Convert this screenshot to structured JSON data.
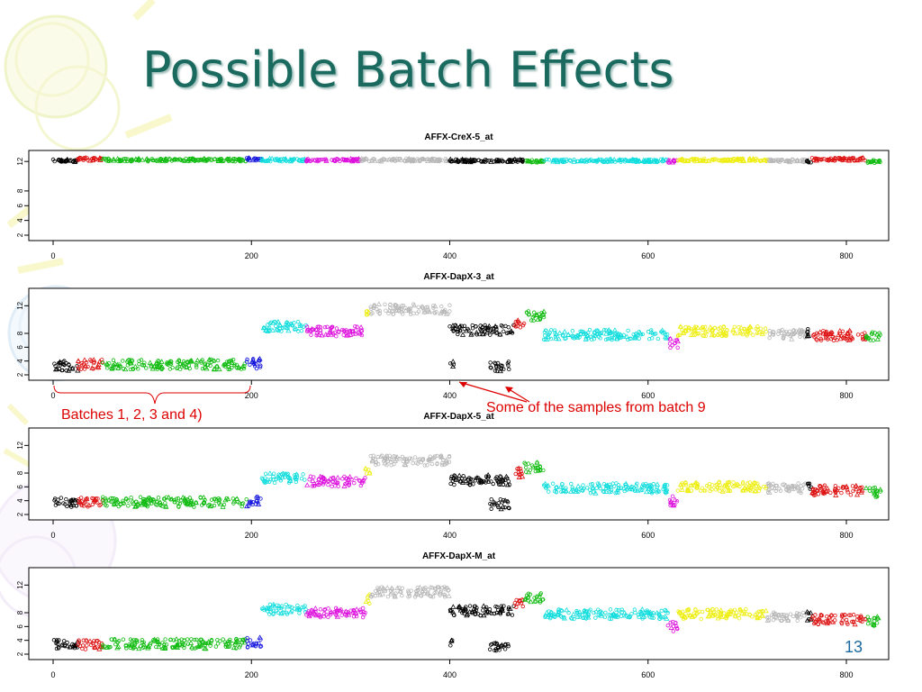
{
  "slide": {
    "title": "Possible Batch Effects",
    "page_number": "13",
    "annotations": {
      "batches": "Batches 1, 2, 3 and 4)",
      "batch9": "Some of the samples from batch 9"
    }
  },
  "colors": {
    "title": "#1b6a5f",
    "annotation": "#dd0000",
    "black": "#000000",
    "red": "#dd1111",
    "green": "#11bb11",
    "blue": "#1111dd",
    "cyan": "#11dddd",
    "magenta": "#dd11dd",
    "grey": "#b8b8b8",
    "yellow": "#eeee11"
  },
  "chart_data": [
    {
      "type": "scatter",
      "title": "AFFX-CreX-5_at",
      "xlim": [
        0,
        840
      ],
      "ylim": [
        2,
        13
      ],
      "x_ticks": [
        0,
        200,
        400,
        600,
        800
      ],
      "y_ticks": [
        2,
        4,
        6,
        8,
        12
      ],
      "series": [
        {
          "color": "black",
          "x_range": [
            0,
            25
          ],
          "level": 12.1
        },
        {
          "color": "red",
          "x_range": [
            25,
            50
          ],
          "level": 12.3
        },
        {
          "color": "green",
          "x_range": [
            50,
            195
          ],
          "level": 12.2
        },
        {
          "color": "blue",
          "x_range": [
            195,
            210
          ],
          "level": 12.3
        },
        {
          "color": "cyan",
          "x_range": [
            210,
            255
          ],
          "level": 12.2
        },
        {
          "color": "magenta",
          "x_range": [
            255,
            310
          ],
          "level": 12.2
        },
        {
          "color": "grey",
          "x_range": [
            310,
            400
          ],
          "level": 12.2
        },
        {
          "color": "black",
          "x_range": [
            400,
            475
          ],
          "level": 12.1
        },
        {
          "color": "green",
          "x_range": [
            475,
            495
          ],
          "level": 12.0
        },
        {
          "color": "cyan",
          "x_range": [
            495,
            620
          ],
          "level": 12.1
        },
        {
          "color": "magenta",
          "x_range": [
            620,
            630
          ],
          "level": 12.0
        },
        {
          "color": "yellow",
          "x_range": [
            630,
            720
          ],
          "level": 12.2
        },
        {
          "color": "grey",
          "x_range": [
            720,
            760
          ],
          "level": 12.1
        },
        {
          "color": "black",
          "x_range": [
            760,
            765
          ],
          "level": 12.0
        },
        {
          "color": "red",
          "x_range": [
            765,
            820
          ],
          "level": 12.3
        },
        {
          "color": "green",
          "x_range": [
            820,
            835
          ],
          "level": 12.0
        }
      ]
    },
    {
      "type": "scatter",
      "title": "AFFX-DapX-3_at",
      "xlim": [
        0,
        840
      ],
      "ylim": [
        2,
        14
      ],
      "x_ticks": [
        0,
        200,
        400,
        600,
        800
      ],
      "y_ticks": [
        2,
        4,
        6,
        8,
        12
      ],
      "series": [
        {
          "color": "black",
          "x_range": [
            0,
            25
          ],
          "level": 3.3
        },
        {
          "color": "red",
          "x_range": [
            25,
            50
          ],
          "level": 3.5
        },
        {
          "color": "green",
          "x_range": [
            50,
            195
          ],
          "level": 3.5
        },
        {
          "color": "blue",
          "x_range": [
            195,
            210
          ],
          "level": 3.6
        },
        {
          "color": "cyan",
          "x_range": [
            210,
            255
          ],
          "level": 9.0
        },
        {
          "color": "magenta",
          "x_range": [
            255,
            315
          ],
          "level": 8.3
        },
        {
          "color": "yellow",
          "x_range": [
            315,
            320
          ],
          "level": 10.5
        },
        {
          "color": "grey",
          "x_range": [
            320,
            400
          ],
          "level": 11.5
        },
        {
          "color": "black",
          "x_range": [
            400,
            465
          ],
          "level": 8.5
        },
        {
          "color": "black",
          "x_range": [
            440,
            460
          ],
          "level": 3.2
        },
        {
          "color": "black",
          "x_range": [
            400,
            404
          ],
          "level": 3.5
        },
        {
          "color": "red",
          "x_range": [
            465,
            475
          ],
          "level": 9.5
        },
        {
          "color": "green",
          "x_range": [
            475,
            495
          ],
          "level": 10.5
        },
        {
          "color": "cyan",
          "x_range": [
            495,
            620
          ],
          "level": 7.8
        },
        {
          "color": "magenta",
          "x_range": [
            620,
            630
          ],
          "level": 6.5
        },
        {
          "color": "yellow",
          "x_range": [
            630,
            720
          ],
          "level": 8.3
        },
        {
          "color": "grey",
          "x_range": [
            720,
            760
          ],
          "level": 7.8
        },
        {
          "color": "black",
          "x_range": [
            760,
            765
          ],
          "level": 8.0
        },
        {
          "color": "red",
          "x_range": [
            765,
            820
          ],
          "level": 7.7
        },
        {
          "color": "green",
          "x_range": [
            820,
            835
          ],
          "level": 7.5
        }
      ]
    },
    {
      "type": "scatter",
      "title": "AFFX-DapX-5_at",
      "xlim": [
        0,
        840
      ],
      "ylim": [
        2,
        14
      ],
      "x_ticks": [
        0,
        200,
        400,
        600,
        800
      ],
      "y_ticks": [
        2,
        4,
        6,
        8,
        12
      ],
      "series": [
        {
          "color": "black",
          "x_range": [
            0,
            25
          ],
          "level": 3.8
        },
        {
          "color": "red",
          "x_range": [
            25,
            50
          ],
          "level": 3.7
        },
        {
          "color": "green",
          "x_range": [
            50,
            195
          ],
          "level": 3.8
        },
        {
          "color": "blue",
          "x_range": [
            195,
            210
          ],
          "level": 3.9
        },
        {
          "color": "cyan",
          "x_range": [
            210,
            255
          ],
          "level": 7.3
        },
        {
          "color": "magenta",
          "x_range": [
            255,
            315
          ],
          "level": 6.8
        },
        {
          "color": "yellow",
          "x_range": [
            315,
            320
          ],
          "level": 8.5
        },
        {
          "color": "grey",
          "x_range": [
            320,
            400
          ],
          "level": 9.8
        },
        {
          "color": "black",
          "x_range": [
            400,
            465
          ],
          "level": 7.0
        },
        {
          "color": "black",
          "x_range": [
            440,
            460
          ],
          "level": 3.5
        },
        {
          "color": "red",
          "x_range": [
            465,
            475
          ],
          "level": 8.0
        },
        {
          "color": "green",
          "x_range": [
            475,
            495
          ],
          "level": 8.8
        },
        {
          "color": "cyan",
          "x_range": [
            495,
            620
          ],
          "level": 5.8
        },
        {
          "color": "magenta",
          "x_range": [
            620,
            630
          ],
          "level": 4.0
        },
        {
          "color": "yellow",
          "x_range": [
            630,
            720
          ],
          "level": 6.0
        },
        {
          "color": "grey",
          "x_range": [
            720,
            760
          ],
          "level": 5.8
        },
        {
          "color": "black",
          "x_range": [
            760,
            765
          ],
          "level": 6.0
        },
        {
          "color": "red",
          "x_range": [
            765,
            820
          ],
          "level": 5.5
        },
        {
          "color": "green",
          "x_range": [
            820,
            835
          ],
          "level": 5.2
        }
      ]
    },
    {
      "type": "scatter",
      "title": "AFFX-DapX-M_at",
      "xlim": [
        0,
        840
      ],
      "ylim": [
        2,
        14
      ],
      "x_ticks": [
        0,
        200,
        400,
        600,
        800
      ],
      "y_ticks": [
        2,
        4,
        6,
        8,
        12
      ],
      "series": [
        {
          "color": "black",
          "x_range": [
            0,
            25
          ],
          "level": 3.4
        },
        {
          "color": "red",
          "x_range": [
            25,
            50
          ],
          "level": 3.4
        },
        {
          "color": "green",
          "x_range": [
            50,
            195
          ],
          "level": 3.5
        },
        {
          "color": "blue",
          "x_range": [
            195,
            210
          ],
          "level": 3.7
        },
        {
          "color": "cyan",
          "x_range": [
            210,
            255
          ],
          "level": 8.5
        },
        {
          "color": "magenta",
          "x_range": [
            255,
            315
          ],
          "level": 8.0
        },
        {
          "color": "yellow",
          "x_range": [
            315,
            320
          ],
          "level": 10.0
        },
        {
          "color": "grey",
          "x_range": [
            320,
            400
          ],
          "level": 11.0
        },
        {
          "color": "black",
          "x_range": [
            400,
            465
          ],
          "level": 8.3
        },
        {
          "color": "black",
          "x_range": [
            440,
            460
          ],
          "level": 3.2
        },
        {
          "color": "black",
          "x_range": [
            400,
            404
          ],
          "level": 3.4
        },
        {
          "color": "red",
          "x_range": [
            465,
            475
          ],
          "level": 9.5
        },
        {
          "color": "green",
          "x_range": [
            475,
            495
          ],
          "level": 10.2
        },
        {
          "color": "cyan",
          "x_range": [
            495,
            620
          ],
          "level": 7.8
        },
        {
          "color": "magenta",
          "x_range": [
            620,
            630
          ],
          "level": 6.0
        },
        {
          "color": "yellow",
          "x_range": [
            630,
            720
          ],
          "level": 7.8
        },
        {
          "color": "grey",
          "x_range": [
            720,
            760
          ],
          "level": 7.5
        },
        {
          "color": "black",
          "x_range": [
            760,
            765
          ],
          "level": 7.5
        },
        {
          "color": "red",
          "x_range": [
            765,
            820
          ],
          "level": 7.0
        },
        {
          "color": "green",
          "x_range": [
            820,
            835
          ],
          "level": 6.8
        }
      ]
    }
  ]
}
